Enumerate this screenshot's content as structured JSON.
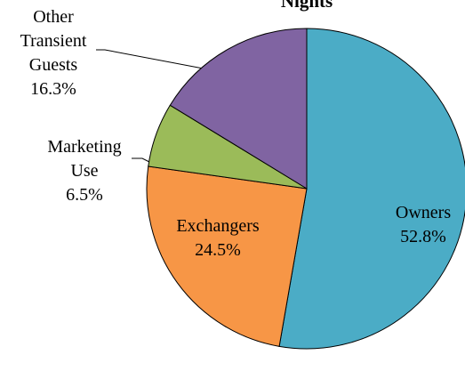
{
  "chart_data": {
    "type": "pie",
    "title": "Nights",
    "categories": [
      "Owners",
      "Exchangers",
      "Marketing Use",
      "Other Transient Guests"
    ],
    "values": [
      52.8,
      24.5,
      6.5,
      16.3
    ],
    "value_labels": [
      "52.8%",
      "24.5%",
      "6.5%",
      "16.3%"
    ],
    "colors": [
      "#4bacc6",
      "#f79646",
      "#9bbb59",
      "#8064a2"
    ]
  }
}
